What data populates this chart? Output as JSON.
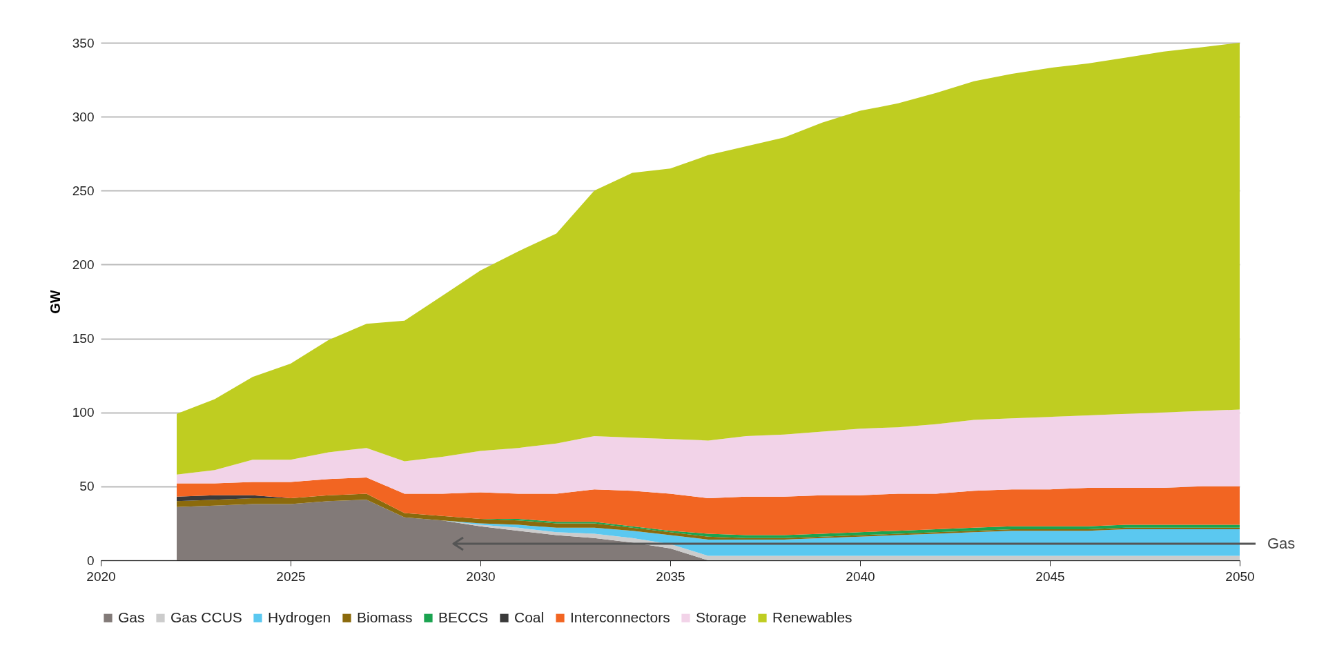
{
  "chart_data": {
    "type": "area",
    "stacked": true,
    "ylabel": "GW",
    "x": [
      2022,
      2023,
      2024,
      2025,
      2026,
      2027,
      2028,
      2029,
      2030,
      2031,
      2032,
      2033,
      2034,
      2035,
      2036,
      2037,
      2038,
      2039,
      2040,
      2041,
      2042,
      2043,
      2044,
      2045,
      2046,
      2047,
      2048,
      2049,
      2050
    ],
    "series": [
      {
        "name": "Gas",
        "color": "#827a78",
        "values": [
          36,
          37,
          38,
          38,
          40,
          41,
          29,
          27,
          23,
          20,
          17,
          15,
          12,
          8,
          0,
          null,
          null,
          null,
          null,
          null,
          null,
          null,
          null,
          null,
          null,
          null,
          null,
          null,
          null
        ]
      },
      {
        "name": "Gas CCUS",
        "color": "#cccccc",
        "values": [
          null,
          null,
          null,
          null,
          null,
          null,
          null,
          0,
          1,
          2,
          2,
          3,
          3,
          3,
          3,
          3,
          3,
          3,
          3,
          3,
          3,
          3,
          3,
          3,
          3,
          3,
          3,
          3,
          3
        ]
      },
      {
        "name": "Hydrogen",
        "color": "#5bc8f0",
        "values": [
          null,
          null,
          null,
          null,
          null,
          null,
          null,
          0,
          1,
          2,
          3,
          4,
          5,
          6,
          11,
          11,
          11,
          12,
          13,
          14,
          15,
          16,
          17,
          17,
          17,
          18,
          18,
          18,
          18
        ]
      },
      {
        "name": "Biomass",
        "color": "#8b6a0c",
        "values": [
          4,
          4,
          4,
          4,
          4,
          4,
          3,
          3,
          3,
          3,
          3,
          3,
          2,
          2,
          2,
          1,
          1,
          1,
          1,
          1,
          1,
          1,
          1,
          1,
          1,
          1,
          1,
          1,
          1
        ]
      },
      {
        "name": "BECCS",
        "color": "#1aa350",
        "values": [
          null,
          null,
          null,
          null,
          null,
          null,
          null,
          null,
          0,
          1,
          1,
          1,
          1,
          1,
          2,
          2,
          2,
          2,
          2,
          2,
          2,
          2,
          2,
          2,
          2,
          2,
          2,
          2,
          2
        ]
      },
      {
        "name": "Coal",
        "color": "#3a3a3a",
        "values": [
          3,
          3,
          2,
          0,
          null,
          null,
          null,
          null,
          null,
          null,
          null,
          null,
          null,
          null,
          null,
          null,
          null,
          null,
          null,
          null,
          null,
          null,
          null,
          null,
          null,
          null,
          null,
          null,
          null
        ]
      },
      {
        "name": "Interconnectors",
        "color": "#f26522",
        "values": [
          9,
          8,
          9,
          11,
          11,
          11,
          13,
          15,
          18,
          17,
          19,
          22,
          24,
          25,
          24,
          26,
          26,
          26,
          25,
          25,
          24,
          25,
          25,
          25,
          26,
          25,
          25,
          26,
          26
        ]
      },
      {
        "name": "Storage",
        "color": "#f2d3e8",
        "values": [
          6,
          9,
          15,
          15,
          18,
          20,
          22,
          25,
          28,
          31,
          34,
          36,
          36,
          37,
          39,
          41,
          42,
          43,
          45,
          45,
          47,
          48,
          48,
          49,
          49,
          50,
          51,
          51,
          52
        ]
      },
      {
        "name": "Renewables",
        "color": "#bfcd21",
        "values": [
          41,
          48,
          56,
          65,
          76,
          84,
          95,
          109,
          122,
          133,
          142,
          166,
          179,
          183,
          193,
          196,
          201,
          209,
          215,
          219,
          224,
          229,
          233,
          236,
          238,
          241,
          244,
          246,
          248
        ]
      }
    ],
    "xlim": [
      2020,
      2050
    ],
    "xticks": [
      2020,
      2025,
      2030,
      2035,
      2040,
      2045,
      2050
    ],
    "ylim": [
      0,
      350
    ],
    "yticks": [
      0,
      50,
      100,
      150,
      200,
      250,
      300,
      350
    ],
    "grid": "y",
    "legend": "bottom",
    "annotations": [
      "Gas"
    ]
  }
}
